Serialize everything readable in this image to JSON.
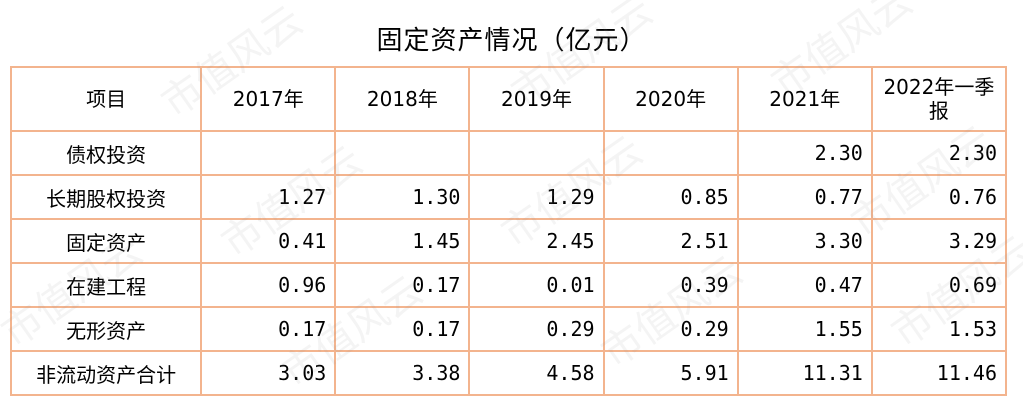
{
  "title": "固定资产情况（亿元）",
  "watermark": "市值风云",
  "header": {
    "item": "项目",
    "years": [
      "2017年",
      "2018年",
      "2019年",
      "2020年",
      "2021年",
      "2022年一季报"
    ]
  },
  "rows": [
    {
      "label": "债权投资",
      "values": [
        "",
        "",
        "",
        "",
        "2.30",
        "2.30"
      ]
    },
    {
      "label": "长期股权投资",
      "values": [
        "1.27",
        "1.30",
        "1.29",
        "0.85",
        "0.77",
        "0.76"
      ]
    },
    {
      "label": "固定资产",
      "values": [
        "0.41",
        "1.45",
        "2.45",
        "2.51",
        "3.30",
        "3.29"
      ]
    },
    {
      "label": "在建工程",
      "values": [
        "0.96",
        "0.17",
        "0.01",
        "0.39",
        "0.47",
        "0.69"
      ]
    },
    {
      "label": "无形资产",
      "values": [
        "0.17",
        "0.17",
        "0.29",
        "0.29",
        "1.55",
        "1.53"
      ]
    },
    {
      "label": "非流动资产合计",
      "values": [
        "3.03",
        "3.38",
        "4.58",
        "5.91",
        "11.31",
        "11.46"
      ]
    }
  ],
  "colors": {
    "border": "#f3b48e",
    "text": "#000000",
    "background": "#ffffff"
  }
}
